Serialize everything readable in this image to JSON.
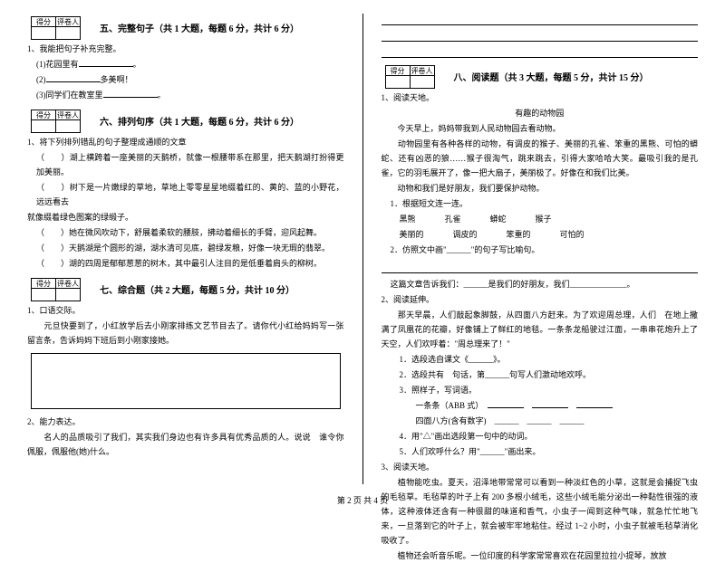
{
  "scoreHeaders": {
    "score": "得分",
    "grader": "评卷人"
  },
  "footer": "第 2 页 共 4 页",
  "left": {
    "s5": {
      "title": "五、完整句子（共 1 大题，每题 6 分，共计 6 分）",
      "q1": "1、我能把句子补充完整。",
      "q1_1": "(1)花园里有",
      "q1_2": "(2)",
      "q1_2b": "多美啊！",
      "q1_3": "(3)同学们在教室里"
    },
    "s6": {
      "title": "六、排列句序（共 1 大题，每题 6 分，共计 6 分）",
      "q1": "1、将下列排列错乱的句子整理成通顺的文章",
      "l1": "（　　）湖上横跨着一座美丽的天鹅桥，就像一根腰带系在那里，把天鹅湖打扮得更加美丽。",
      "l2a": "（　　）树下是一片嫩绿的草地，草地上零零星星地缀着红的、黄的、蓝的小野花，远远看去",
      "l2b": "就像缀着绿色图案的绿缎子。",
      "l3": "（　　）她在微风吹动下，舒展着柔软的腰肢，拂动着细长的手臂，迎风起舞。",
      "l4": "（　　）天鹅湖是个圆形的湖，湖水清可见底，碧绿发粮，好像一块无瑕的翡翠。",
      "l5": "（　　）湖的四周是郁郁葱葱的树木，其中最引人注目的是低垂着肩头的柳树。"
    },
    "s7": {
      "title": "七、综合题（共 2 大题，每题 5 分，共计 10 分）",
      "q1": "1、口语交际。",
      "q1_text": "　　元旦快要到了，小红放学后去小刚家排练文艺节目去了。请你代小红给妈妈写一张留言条，告诉妈妈下班后到小刚家接她。",
      "q2": "2、能力表达。",
      "q2_text": "　　名人的品质吸引了我们，其实我们身边也有许多具有优秀品质的人。说说　谁令你佩服，佩服他(她)什么。"
    }
  },
  "right": {
    "s8": {
      "title": "八、阅读题（共 3 大题，每题 5 分，共计 15 分）",
      "q1": "1、阅读天地。",
      "t1": "有趣的动物园",
      "p1": "　　今天早上，妈妈带我到人民动物园去看动物。",
      "p2": "　　动物园里有各种各样的动物，有调皮的猴子、美丽的孔雀、笨重的黑熊、可怕的蟒蛇、还有凶恶的狼……猴子很淘气，跳来跳去，引得大家哈哈大笑。最吸引我的是孔雀，它的羽毛展开了，像一把大扇子，美丽极了。好像在和我们比美。",
      "p3": "　　动物和我们是好朋友，我们要保护动物。",
      "sub1": "1．根据短文连一连。",
      "w1a": "黑熊",
      "w1b": "孔雀",
      "w1c": "蟒蛇",
      "w1d": "猴子",
      "w2a": "美丽的",
      "w2b": "调皮的",
      "w2c": "笨重的",
      "w2d": "可怕的",
      "sub2": "2．仿照文中画\"______\"的句子写比喻句。",
      "sub3": "这篇文章告诉我们：______是我们的好朋友，我们______________。",
      "q2": "2、阅读延伸。",
      "p2_1": "　　那天早晨，人们敲起象脚鼓，从四面八方赶来。为了欢迎周总理，人们　在地上撒满了凤凰花的花瓣，好像铺上了鲜红的地毯。一条条龙船驶过江面，一串串花炮升上了天空，人们欢呼着：\"周总理来了！\"",
      "s2_1": "1．选段选自课文《______》。",
      "s2_2": "2．选段共有　句话，第______句写人们激动地欢呼。",
      "s2_3": "3．照样子，写词语。",
      "s2_3a": "　　一条条（ABB 式）",
      "s2_3b": "　　四面八方(含有数字)　______　______　______",
      "s2_4": "4．用\"△\"画出选段第一句中的动词。",
      "s2_5": "5．人们欢呼什么？用\"______\"画出来。",
      "q3": "3、阅读天地。",
      "p3_1": "　　植物能吃虫。夏天，沼泽地带常常可以看到一种淡红色的小草，这就是会捕捉飞虫的毛毡草。毛毡草的叶子上有 200 多根小绒毛，这些小绒毛能分泌出一种黏性很强的液体，这种液体还含有一种很甜的味道和香气，小虫子一闻到这种气味，就急忙忙地飞来，一旦落到它的叶子上，就会被牢牢地粘住。经过 1~2 小时，小虫子就被毛毡草消化吸收了。",
      "p3_2": "　　植物还会听音乐呢。一位印度的科学家常常喜欢在花园里拉拉小提琴，放放"
    }
  }
}
